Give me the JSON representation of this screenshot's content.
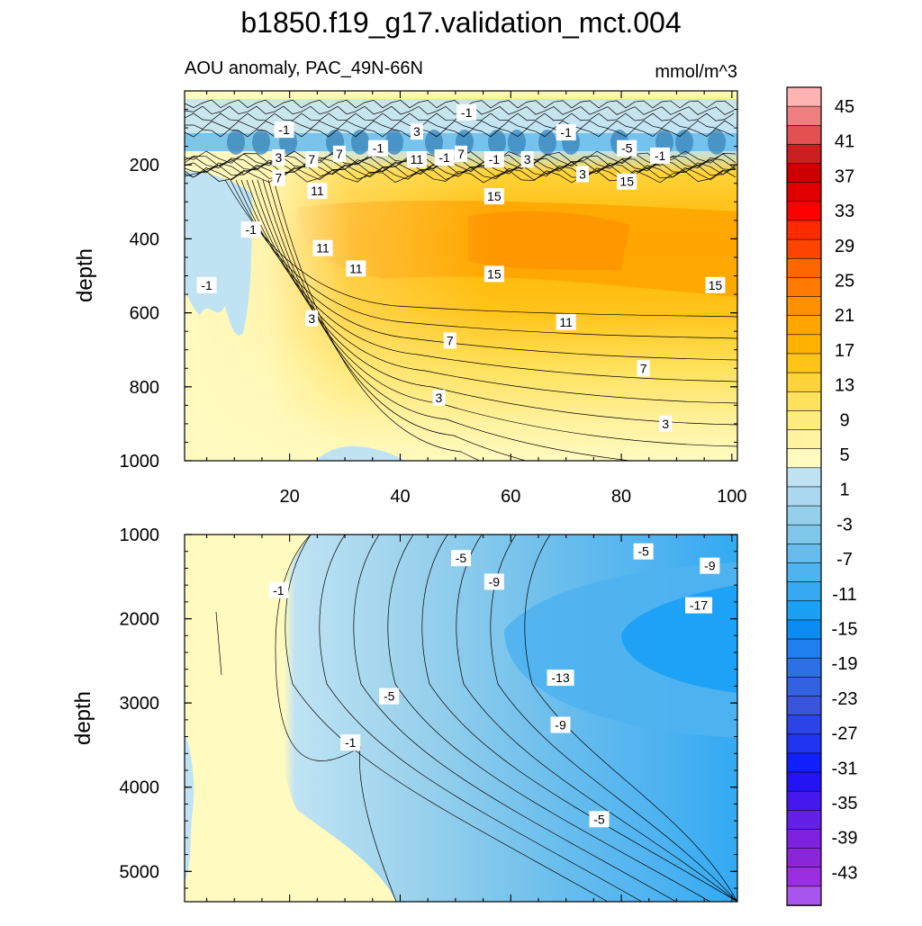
{
  "chart_data": {
    "type": "contour",
    "title": "b1850.f19_g17.validation_mct.004",
    "subtitle_left": "AOU anomaly, PAC_49N-66N",
    "subtitle_right": "mmol/m^3",
    "panels": [
      {
        "name": "upper",
        "ylabel": "depth",
        "ylim": [
          0,
          1000
        ],
        "y_ticks": [
          200,
          400,
          600,
          800,
          1000
        ],
        "xlim": [
          1,
          101
        ],
        "x_ticks": [
          20,
          40,
          60,
          80,
          100
        ],
        "contour_labels": [
          {
            "text": "-1",
            "x": 19,
            "y": 105
          },
          {
            "text": "3",
            "x": 43,
            "y": 110
          },
          {
            "text": "-1",
            "x": 52,
            "y": 58
          },
          {
            "text": "-1",
            "x": 70,
            "y": 112
          },
          {
            "text": "-5",
            "x": 81,
            "y": 155
          },
          {
            "text": "-1",
            "x": 87,
            "y": 175
          },
          {
            "text": "3",
            "x": 18,
            "y": 180
          },
          {
            "text": "7",
            "x": 24,
            "y": 185
          },
          {
            "text": "7",
            "x": 29,
            "y": 170
          },
          {
            "text": "-1",
            "x": 36,
            "y": 155
          },
          {
            "text": "-1",
            "x": 48,
            "y": 180
          },
          {
            "text": "11",
            "x": 43,
            "y": 185
          },
          {
            "text": "7",
            "x": 51,
            "y": 170
          },
          {
            "text": "-1",
            "x": 57,
            "y": 185
          },
          {
            "text": "3",
            "x": 63,
            "y": 185
          },
          {
            "text": "3",
            "x": 73,
            "y": 225
          },
          {
            "text": "15",
            "x": 81,
            "y": 245
          },
          {
            "text": "7",
            "x": 18,
            "y": 235
          },
          {
            "text": "11",
            "x": 25,
            "y": 270
          },
          {
            "text": "15",
            "x": 57,
            "y": 285
          },
          {
            "text": "-1",
            "x": 13,
            "y": 375
          },
          {
            "text": "11",
            "x": 26,
            "y": 425
          },
          {
            "text": "11",
            "x": 32,
            "y": 480
          },
          {
            "text": "15",
            "x": 57,
            "y": 495
          },
          {
            "text": "-1",
            "x": 5,
            "y": 525
          },
          {
            "text": "15",
            "x": 97,
            "y": 525
          },
          {
            "text": "3",
            "x": 24,
            "y": 615
          },
          {
            "text": "11",
            "x": 70,
            "y": 625
          },
          {
            "text": "7",
            "x": 49,
            "y": 675
          },
          {
            "text": "7",
            "x": 84,
            "y": 750
          },
          {
            "text": "3",
            "x": 47,
            "y": 830
          },
          {
            "text": "3",
            "x": 88,
            "y": 900
          }
        ]
      },
      {
        "name": "lower",
        "ylabel": "depth",
        "ylim": [
          1000,
          5360
        ],
        "y_ticks": [
          1000,
          2000,
          3000,
          4000,
          5000
        ],
        "xlim": [
          1,
          101
        ],
        "contour_labels": [
          {
            "text": "-5",
            "x": 51,
            "y": 1280
          },
          {
            "text": "-5",
            "x": 84,
            "y": 1200
          },
          {
            "text": "-9",
            "x": 57,
            "y": 1560
          },
          {
            "text": "-9",
            "x": 96,
            "y": 1370
          },
          {
            "text": "-1",
            "x": 18,
            "y": 1660
          },
          {
            "text": "-17",
            "x": 94,
            "y": 1840
          },
          {
            "text": "-13",
            "x": 69,
            "y": 2700
          },
          {
            "text": "-5",
            "x": 38,
            "y": 2920
          },
          {
            "text": "-9",
            "x": 69,
            "y": 3260
          },
          {
            "text": "-1",
            "x": 31,
            "y": 3470
          },
          {
            "text": "-5",
            "x": 76,
            "y": 4380
          }
        ]
      }
    ],
    "colorbar": {
      "levels": [
        45,
        41,
        37,
        33,
        29,
        25,
        21,
        17,
        13,
        9,
        5,
        1,
        -3,
        -7,
        -11,
        -15,
        -19,
        -23,
        -27,
        -31,
        -35,
        -39,
        -43
      ],
      "colors": [
        "#ffb3b3",
        "#f08080",
        "#e25050",
        "#cc2020",
        "#cc0000",
        "#e00000",
        "#ff0000",
        "#ff2a00",
        "#ff4400",
        "#ff6600",
        "#ff7a00",
        "#ff9100",
        "#ffa500",
        "#ffb300",
        "#ffc41a",
        "#ffd43a",
        "#ffe15c",
        "#ffec80",
        "#fff2a0",
        "#fffac0",
        "#bfe3f3",
        "#aad9ef",
        "#95cfeb",
        "#7ec6ea",
        "#66bced",
        "#4fb3f0",
        "#33aaf2",
        "#1aa0f5",
        "#0b8cf2",
        "#1f7fee",
        "#2c70e6",
        "#3362e0",
        "#3a55dc",
        "#2a44e8",
        "#1f35f0",
        "#1020ff",
        "#2414f5",
        "#4518ee",
        "#6520e8",
        "#7f22e0",
        "#8a25d8",
        "#9a2ee0",
        "#a855ee"
      ]
    }
  }
}
